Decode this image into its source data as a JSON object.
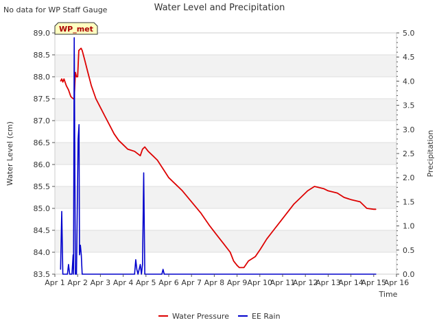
{
  "header": {
    "title": "Water Level and Precipitation",
    "note": "No data for WP Staff Gauge",
    "station_badge": "WP_met"
  },
  "legend": {
    "items": [
      {
        "label": "Water Pressure",
        "color": "#dd0000"
      },
      {
        "label": "EE Rain",
        "color": "#0000cc"
      }
    ]
  },
  "chart_data": {
    "type": "line",
    "title": "Water Level and Precipitation",
    "xlabel": "Time",
    "ylabel": "Water Level (cm)",
    "y2label": "Precipitation",
    "xlim": [
      1,
      16
    ],
    "ylim": [
      83.5,
      89.0
    ],
    "y2lim": [
      0.0,
      5.0
    ],
    "x_ticks": [
      "Apr 1",
      "Apr 2",
      "Apr 3",
      "Apr 4",
      "Apr 5",
      "Apr 6",
      "Apr 7",
      "Apr 8",
      "Apr 9",
      "Apr 10",
      "Apr 11",
      "Apr 12",
      "Apr 13",
      "Apr 14",
      "Apr 15",
      "Apr 16"
    ],
    "y_ticks": [
      "83.5",
      "84.0",
      "84.5",
      "85.0",
      "85.5",
      "86.0",
      "86.5",
      "87.0",
      "87.5",
      "88.0",
      "88.5",
      "89.0"
    ],
    "y2_ticks": [
      "0.0",
      "0.5",
      "1.0",
      "1.5",
      "2.0",
      "2.5",
      "3.0",
      "3.5",
      "4.0",
      "4.5",
      "5.0"
    ],
    "grid": "horizontal bands",
    "legend_position": "bottom-center",
    "series": [
      {
        "name": "Water Pressure",
        "axis": "left",
        "color": "#dd0000",
        "points": [
          [
            1.25,
            87.9
          ],
          [
            1.3,
            87.95
          ],
          [
            1.35,
            87.88
          ],
          [
            1.4,
            87.95
          ],
          [
            1.5,
            87.8
          ],
          [
            1.6,
            87.7
          ],
          [
            1.7,
            87.55
          ],
          [
            1.8,
            87.5
          ],
          [
            1.85,
            87.5
          ],
          [
            1.9,
            88.1
          ],
          [
            1.95,
            88.0
          ],
          [
            2.0,
            88.0
          ],
          [
            2.05,
            88.6
          ],
          [
            2.15,
            88.65
          ],
          [
            2.2,
            88.6
          ],
          [
            2.3,
            88.4
          ],
          [
            2.45,
            88.1
          ],
          [
            2.6,
            87.8
          ],
          [
            2.8,
            87.5
          ],
          [
            3.0,
            87.3
          ],
          [
            3.2,
            87.1
          ],
          [
            3.4,
            86.9
          ],
          [
            3.6,
            86.7
          ],
          [
            3.8,
            86.55
          ],
          [
            4.0,
            86.45
          ],
          [
            4.2,
            86.35
          ],
          [
            4.5,
            86.3
          ],
          [
            4.75,
            86.2
          ],
          [
            4.85,
            86.35
          ],
          [
            4.95,
            86.4
          ],
          [
            5.1,
            86.3
          ],
          [
            5.3,
            86.2
          ],
          [
            5.5,
            86.1
          ],
          [
            5.75,
            85.9
          ],
          [
            6.0,
            85.7
          ],
          [
            6.3,
            85.55
          ],
          [
            6.6,
            85.4
          ],
          [
            7.0,
            85.15
          ],
          [
            7.4,
            84.9
          ],
          [
            7.8,
            84.6
          ],
          [
            8.1,
            84.4
          ],
          [
            8.4,
            84.2
          ],
          [
            8.7,
            84.0
          ],
          [
            8.85,
            83.8
          ],
          [
            9.0,
            83.7
          ],
          [
            9.1,
            83.65
          ],
          [
            9.3,
            83.65
          ],
          [
            9.5,
            83.8
          ],
          [
            9.8,
            83.9
          ],
          [
            10.0,
            84.05
          ],
          [
            10.3,
            84.3
          ],
          [
            10.6,
            84.5
          ],
          [
            10.9,
            84.7
          ],
          [
            11.2,
            84.9
          ],
          [
            11.5,
            85.1
          ],
          [
            11.8,
            85.25
          ],
          [
            12.1,
            85.4
          ],
          [
            12.4,
            85.5
          ],
          [
            12.8,
            85.45
          ],
          [
            13.0,
            85.4
          ],
          [
            13.4,
            85.35
          ],
          [
            13.7,
            85.25
          ],
          [
            14.0,
            85.2
          ],
          [
            14.4,
            85.15
          ],
          [
            14.7,
            85.0
          ],
          [
            15.0,
            84.98
          ],
          [
            15.1,
            84.98
          ]
        ]
      },
      {
        "name": "EE Rain",
        "axis": "right",
        "color": "#0000cc",
        "points": [
          [
            1.25,
            0.1
          ],
          [
            1.3,
            1.3
          ],
          [
            1.35,
            0.0
          ],
          [
            1.55,
            0.0
          ],
          [
            1.6,
            0.2
          ],
          [
            1.65,
            0.0
          ],
          [
            1.75,
            0.0
          ],
          [
            1.8,
            0.4
          ],
          [
            1.82,
            0.0
          ],
          [
            1.85,
            4.9
          ],
          [
            1.9,
            0.0
          ],
          [
            1.95,
            0.0
          ],
          [
            2.02,
            2.8
          ],
          [
            2.06,
            3.1
          ],
          [
            2.08,
            0.4
          ],
          [
            2.12,
            0.6
          ],
          [
            2.16,
            0.4
          ],
          [
            2.2,
            0.0
          ],
          [
            4.5,
            0.0
          ],
          [
            4.55,
            0.3
          ],
          [
            4.6,
            0.1
          ],
          [
            4.65,
            0.0
          ],
          [
            4.75,
            0.2
          ],
          [
            4.8,
            0.0
          ],
          [
            4.85,
            0.2
          ],
          [
            4.9,
            2.1
          ],
          [
            4.95,
            0.0
          ],
          [
            5.7,
            0.0
          ],
          [
            5.75,
            0.1
          ],
          [
            5.8,
            0.0
          ],
          [
            15.1,
            0.0
          ]
        ]
      }
    ]
  }
}
